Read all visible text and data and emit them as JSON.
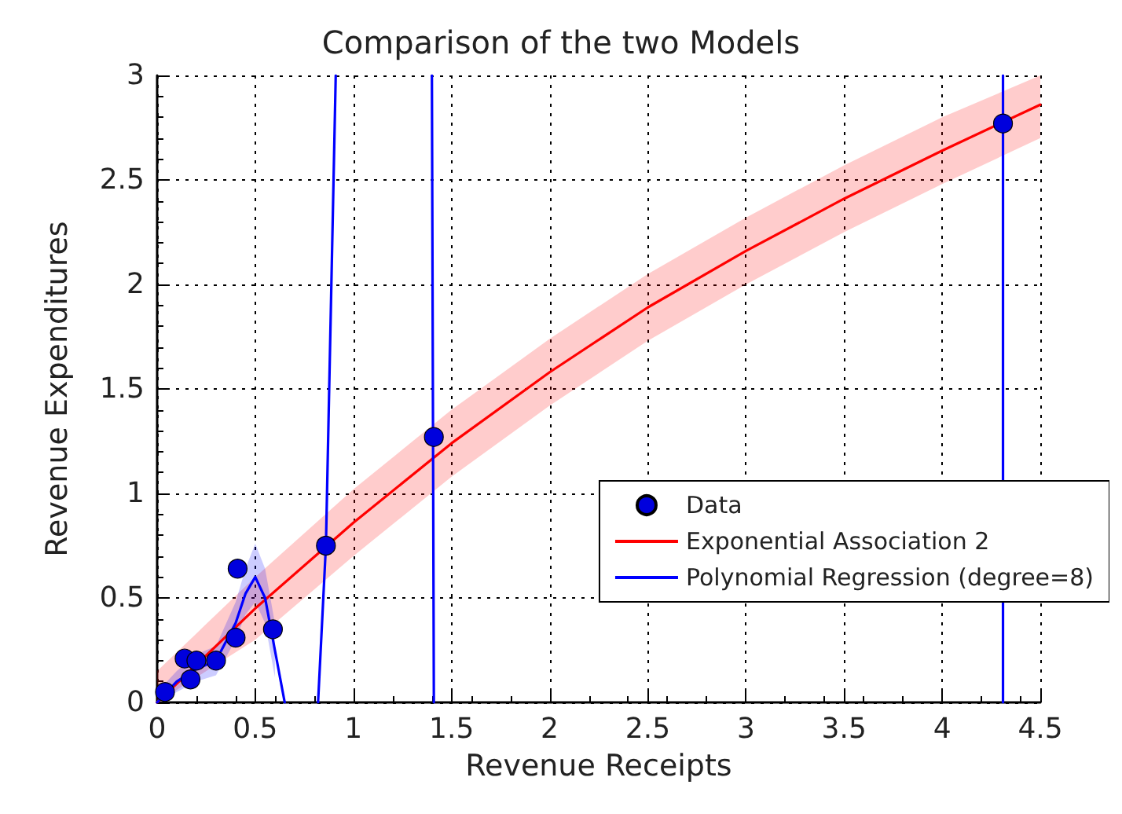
{
  "chart_data": {
    "type": "scatter",
    "title": "Comparison of the two Models",
    "xlabel": "Revenue Receipts",
    "ylabel": "Revenue Expenditures",
    "xlim": [
      0,
      4.5
    ],
    "xticks": [
      0,
      0.5,
      1,
      1.5,
      2,
      2.5,
      3,
      3.5,
      4,
      4.5
    ],
    "ylim": [
      0,
      3
    ],
    "yticks": [
      0,
      0.5,
      1,
      1.5,
      2,
      2.5,
      3
    ],
    "grid": true,
    "legend": "bottom right",
    "marker": "circle",
    "series": [
      {
        "name": "Data",
        "color": "#0000dd",
        "x": [
          0.04,
          0.14,
          0.17,
          0.2,
          0.3,
          0.4,
          0.41,
          0.59,
          0.86,
          1.41,
          4.31
        ],
        "values": [
          0.05,
          0.21,
          0.11,
          0.2,
          0.2,
          0.31,
          0.64,
          0.35,
          0.75,
          1.27,
          2.77
        ]
      },
      {
        "name": "Exponential Association 2",
        "type": "line",
        "marker": "none",
        "color": "#ff0000",
        "x": [
          0,
          0.5,
          1,
          1.5,
          2,
          2.5,
          3,
          3.5,
          4,
          4.5
        ],
        "values": [
          0,
          0.45,
          0.86,
          1.24,
          1.58,
          1.89,
          2.16,
          2.41,
          2.64,
          2.86
        ],
        "lower": [
          0,
          0.3,
          0.7,
          1.08,
          1.42,
          1.73,
          2.0,
          2.25,
          2.48,
          2.7
        ],
        "upper": [
          0.15,
          0.6,
          1.02,
          1.4,
          1.74,
          2.05,
          2.32,
          2.57,
          2.8,
          3.0
        ]
      },
      {
        "name": "Polynomial Regression (degree=8)",
        "type": "line",
        "marker": "none",
        "color": "#0000ff",
        "x": [
          0,
          0.1,
          0.2,
          0.3,
          0.4,
          0.45,
          0.5,
          0.55,
          0.6,
          0.65,
          0.7,
          0.82,
          0.86,
          0.91,
          1.1,
          1.4,
          1.41,
          2.5,
          4.31,
          4.31
        ],
        "values": [
          0,
          0.1,
          0.16,
          0.2,
          0.38,
          0.52,
          0.6,
          0.5,
          0.25,
          0,
          null,
          0,
          0.75,
          3,
          null,
          3,
          0,
          null,
          0,
          3
        ],
        "lower": [
          0,
          0.05,
          0.1,
          0.13,
          0.3,
          0.42,
          0.48,
          0.38,
          0.12,
          null,
          null,
          null,
          null,
          null,
          null,
          null,
          null,
          null,
          null,
          null
        ],
        "upper": [
          0.05,
          0.15,
          0.23,
          0.27,
          0.48,
          0.64,
          0.76,
          0.64,
          0.38,
          null,
          null,
          null,
          null,
          null,
          null,
          null,
          null,
          null,
          null,
          null
        ]
      }
    ]
  }
}
